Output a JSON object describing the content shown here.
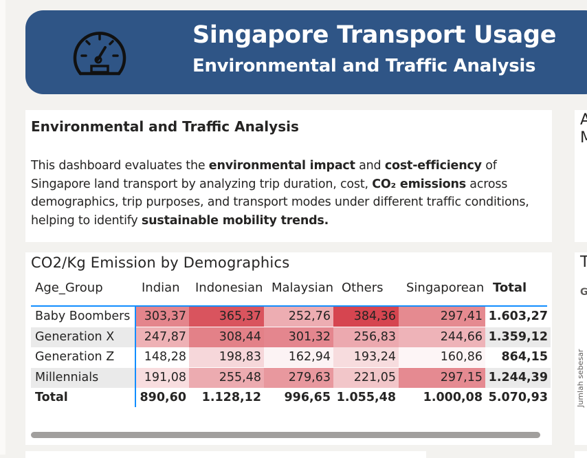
{
  "header": {
    "title": "Singapore Transport Usage",
    "subtitle": "Environmental and Traffic Analysis",
    "icon": "speedometer-icon",
    "background_color": "#2f5586"
  },
  "description_card": {
    "heading": "Environmental and Traffic Analysis",
    "lines": [
      [
        "This dashboard evaluates the ",
        "environmental impact",
        " and ",
        "cost-efficiency",
        " of"
      ],
      [
        "Singapore land transport by analyzing trip duration, cost, ",
        "CO₂ emissions",
        " across"
      ],
      [
        "demographics, trip purposes, and transport modes under different traffic conditions,"
      ],
      [
        "helping to identify ",
        "sustainable mobility trends."
      ]
    ]
  },
  "right_cards": {
    "card1_fragment_lines": [
      "A",
      "M"
    ],
    "card2_fragment_title": "T",
    "card2_fragment_label": "G",
    "card2_fragment_axis": "Jumlah sebesar"
  },
  "chart_data": {
    "type": "table",
    "title": "CO2/Kg Emission by Demographics",
    "row_header": "Age_Group",
    "columns": [
      "Indian",
      "Indonesian",
      "Malaysian",
      "Others",
      "Singaporean"
    ],
    "total_label": "Total",
    "rows": [
      {
        "label": "Baby Boombers",
        "values": [
          "303,37",
          "365,37",
          "252,76",
          "384,36",
          "297,41"
        ],
        "total": "1.603,27"
      },
      {
        "label": "Generation X",
        "values": [
          "247,87",
          "308,44",
          "301,32",
          "256,83",
          "244,66"
        ],
        "total": "1.359,12"
      },
      {
        "label": "Generation Z",
        "values": [
          "148,28",
          "198,83",
          "162,94",
          "193,24",
          "160,86"
        ],
        "total": "864,15"
      },
      {
        "label": "Millennials",
        "values": [
          "191,08",
          "255,48",
          "279,63",
          "221,05",
          "297,15"
        ],
        "total": "1.244,39"
      }
    ],
    "column_totals": [
      "890,60",
      "1.128,12",
      "996,65",
      "1.055,48",
      "1.000,08"
    ],
    "grand_total": "5.070,93",
    "numeric_values": [
      [
        303.37,
        365.37,
        252.76,
        384.36,
        297.41
      ],
      [
        247.87,
        308.44,
        301.32,
        256.83,
        244.66
      ],
      [
        148.28,
        198.83,
        162.94,
        193.24,
        160.86
      ],
      [
        191.08,
        255.48,
        279.63,
        221.05,
        297.15
      ]
    ],
    "heat_scale": {
      "min": 148.28,
      "max": 384.36,
      "low_color": "#ffffff",
      "high_color": "#d64550"
    }
  }
}
